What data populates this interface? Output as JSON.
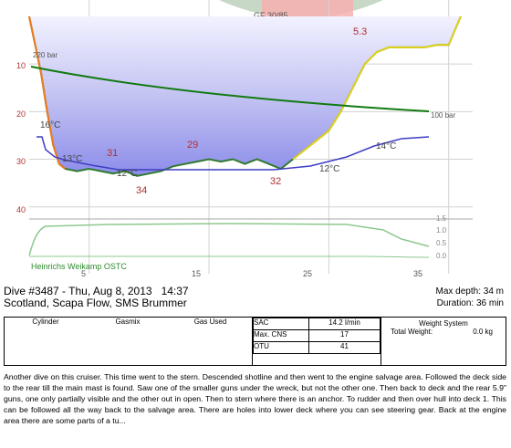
{
  "chart_data": {
    "type": "area",
    "gf_label": "GF 30/85",
    "y_axis_ticks": [
      "10",
      "20",
      "30",
      "40"
    ],
    "x_axis_ticks": [
      "5",
      "15",
      "25",
      "35"
    ],
    "depth_profile": {
      "x": [
        0,
        0.5,
        1,
        1.5,
        2,
        2.5,
        3,
        4,
        5,
        6,
        7,
        8,
        9,
        10,
        11,
        12,
        13,
        14,
        15,
        16,
        17,
        18,
        19,
        20,
        21,
        22,
        23,
        24,
        25,
        26,
        27,
        28,
        29,
        30,
        31,
        32,
        33,
        34,
        35,
        36
      ],
      "y": [
        0,
        6,
        12,
        20,
        27,
        31,
        32,
        32.5,
        32,
        32.5,
        33,
        32.5,
        33.5,
        33,
        32.5,
        31.5,
        31,
        30.5,
        30,
        30.5,
        30,
        31,
        30,
        31,
        32,
        30,
        28,
        26,
        24,
        20,
        15,
        10,
        7.5,
        6.5,
        6.5,
        6.5,
        6.5,
        6,
        6,
        0
      ]
    },
    "depth_labels": [
      "31",
      "34",
      "29",
      "32",
      "5.3"
    ],
    "temperature_labels": [
      "16°C",
      "13°C",
      "12°C",
      "12°C",
      "14°C"
    ],
    "pressure_labels": [
      "220 bar",
      "100 bar"
    ],
    "bottom_axis_ticks": [
      "1.5",
      "1.0",
      "0.5",
      "0.0"
    ],
    "computer_name": "Heinrichs Weikamp OSTC"
  },
  "dive": {
    "title": "Dive #3487 - Thu, Aug 8, 2013",
    "time": "14:37",
    "location": "Scotland, Scapa Flow, SMS Brummer",
    "max_depth": "Max depth: 34 m",
    "duration": "Duration: 36 min"
  },
  "table": {
    "col_cylinder": "Cylinder",
    "col_gasmix": "Gasmix",
    "col_gas_used": "Gas Used",
    "sac_label": "SAC",
    "sac_value": "14.2 l/min",
    "cns_label": "Max. CNS",
    "cns_value": "17",
    "otu_label": "OTU",
    "otu_value": "41",
    "weight_title": "Weight System",
    "weight_label": "Total Weight:",
    "weight_value": "0.0 kg"
  },
  "notes": "Another dive on this cruiser. This time went to the stern. Descended shotline and then went to the engine salvage area. Followed the deck side to the rear till the main mast is found. Saw one of the smaller guns under the wreck, but not the other one. Then back to deck and the rear 5.9\" guns, one only partially visible and the other out in open. Then to stern where there is an anchor. To rudder and then over hull into deck 1. This can be followed all the way back to the salvage area. There are holes into lower deck where you can see steering gear. Back at the engine area there are some parts of a tu..."
}
